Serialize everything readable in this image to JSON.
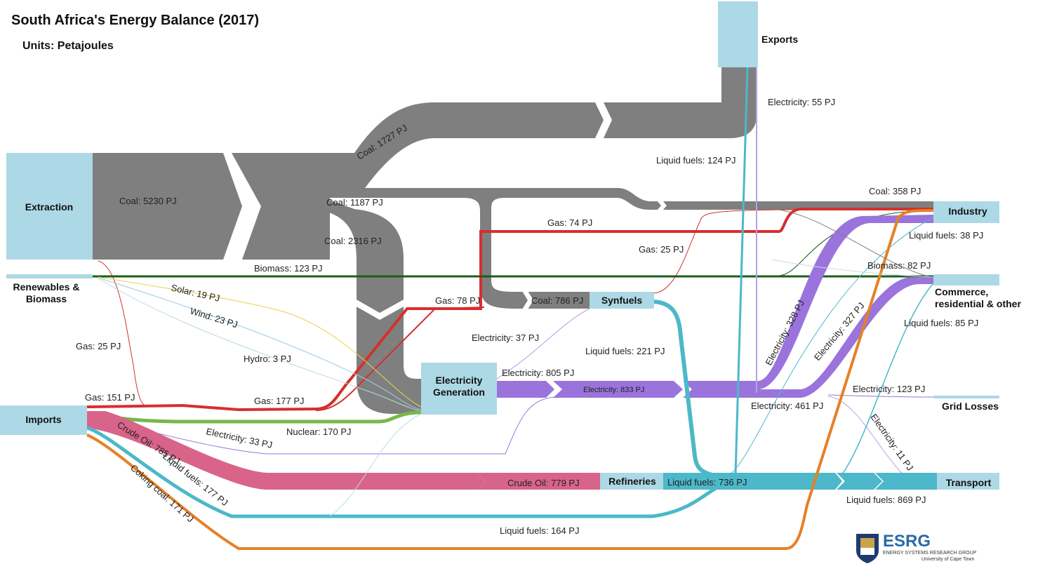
{
  "title": "South Africa's Energy Balance (2017)",
  "subtitle": "Units: Petajoules",
  "colors": {
    "coal": "#7f7f7f",
    "gas": "#d62f2f",
    "biomass": "#1a5e1a",
    "nuclear": "#77b84b",
    "electricity": "#9a74dc",
    "crude_oil": "#d9648a",
    "liquid_fuels": "#4cb8c9",
    "coking_coal": "#e58126",
    "node": "#add8e6",
    "solar": "#e8d44d",
    "wind": "#9ec9e2",
    "hydro": "#b8d8e8"
  },
  "nodes": {
    "extraction": "Extraction",
    "renewables": "Renewables &",
    "renewables2": "Biomass",
    "imports": "Imports",
    "exports": "Exports",
    "industry": "Industry",
    "commerce": "Commerce,",
    "commerce2": "residential & other",
    "synfuels": "Synfuels",
    "elecgen": "Electricity",
    "elecgen2": "Generation",
    "refineries": "Refineries",
    "grid_losses": "Grid Losses",
    "transport": "Transport"
  },
  "flows": {
    "coal_5230": "Coal: 5230 PJ",
    "coal_1727": "Coal: 1727 PJ",
    "coal_1187": "Coal: 1187 PJ",
    "coal_2316": "Coal: 2316 PJ",
    "coal_786": "Coal: 786 PJ",
    "coal_358": "Coal: 358 PJ",
    "elec_55": "Electricity: 55 PJ",
    "lf_124": "Liquid fuels: 124 PJ",
    "gas_74": "Gas: 74 PJ",
    "gas_25a": "Gas: 25 PJ",
    "gas_25b": "Gas: 25 PJ",
    "gas_78": "Gas: 78 PJ",
    "gas_151": "Gas: 151 PJ",
    "gas_177": "Gas: 177 PJ",
    "biomass_123": "Biomass: 123 PJ",
    "biomass_82": "Biomass: 82 PJ",
    "solar_19": "Solar: 19 PJ",
    "wind_23": "Wind: 23 PJ",
    "hydro_3": "Hydro: 3 PJ",
    "lf_38": "Liquid fuels: 38 PJ",
    "lf_85": "Liquid fuels: 85 PJ",
    "elec_37": "Electricity: 37 PJ",
    "lf_221": "Liquid fuels: 221 PJ",
    "elec_805": "Electricity: 805 PJ",
    "elec_833": "Electricity: 833 PJ",
    "elec_328": "Electricity: 328 PJ",
    "elec_327": "Electricity: 327 PJ",
    "elec_123": "Electricity: 123 PJ",
    "elec_461": "Electricity: 461 PJ",
    "elec_11": "Electricity: 11 PJ",
    "nuclear_170": "Nuclear: 170 PJ",
    "elec_33": "Electricity: 33 PJ",
    "crude_785": "Crude Oil: 785 PJ",
    "lf_177": "Liquid fuels: 177 PJ",
    "coking_171": "Coking coal: 171 PJ",
    "crude_779": "Crude Oil: 779 PJ",
    "lf_736": "Liquid fuels: 736 PJ",
    "lf_869": "Liquid fuels: 869 PJ",
    "lf_164": "Liquid fuels: 164 PJ"
  },
  "logo": {
    "name": "ESRG",
    "line1": "ENERGY SYSTEMS RESEARCH GROUP",
    "line2": "University of Cape Town"
  }
}
